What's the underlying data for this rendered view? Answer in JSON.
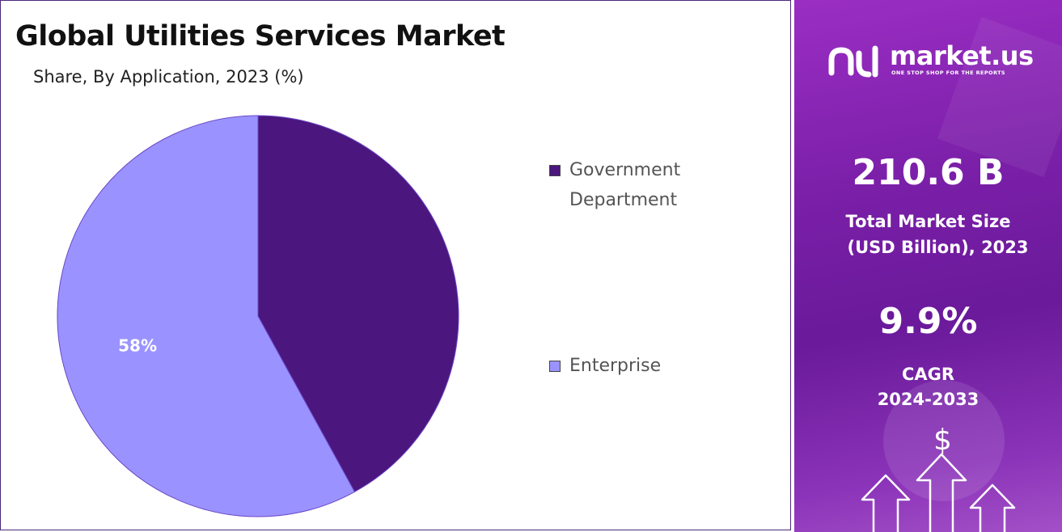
{
  "header": {
    "title": "Global Utilities Services Market",
    "subtitle": "Share, By Application, 2023 (%)"
  },
  "chart_data": {
    "type": "pie",
    "title": "Global Utilities Services Market",
    "subtitle": "Share, By Application, 2023 (%)",
    "categories": [
      "Government Department",
      "Enterprise"
    ],
    "values": [
      42,
      58
    ],
    "colors": [
      "#4b167d",
      "#9a93ff"
    ],
    "data_labels": [
      "",
      "58%"
    ],
    "legend": {
      "placement": "right",
      "entries": [
        {
          "label": "Government Department",
          "color": "#4b167d"
        },
        {
          "label": "Enterprise",
          "color": "#9a93ff"
        }
      ]
    }
  },
  "sidebar": {
    "brand": "market.us",
    "tagline": "ONE STOP SHOP FOR THE REPORTS",
    "market_size_value": "210.6 B",
    "market_size_label_line1": "Total Market Size",
    "market_size_label_line2": "(USD Billion), 2023",
    "cagr_value": "9.9%",
    "cagr_label_line1": "CAGR",
    "cagr_label_line2": "2024-2033",
    "currency_symbol": "$",
    "icons": [
      "market-us-logo-icon",
      "arrow-up-icon",
      "dollar-icon"
    ],
    "accent_color": "#7a1fa8"
  }
}
